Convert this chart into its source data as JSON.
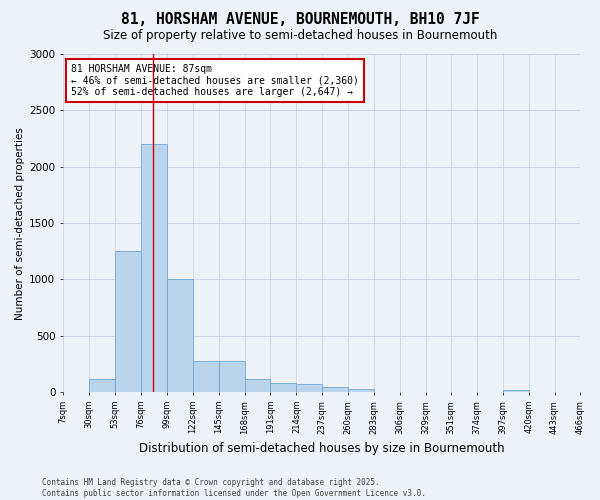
{
  "title": "81, HORSHAM AVENUE, BOURNEMOUTH, BH10 7JF",
  "subtitle": "Size of property relative to semi-detached houses in Bournemouth",
  "xlabel": "Distribution of semi-detached houses by size in Bournemouth",
  "ylabel": "Number of semi-detached properties",
  "footer_line1": "Contains HM Land Registry data © Crown copyright and database right 2025.",
  "footer_line2": "Contains public sector information licensed under the Open Government Licence v3.0.",
  "annotation_title": "81 HORSHAM AVENUE: 87sqm",
  "annotation_line2": "← 46% of semi-detached houses are smaller (2,360)",
  "annotation_line3": "52% of semi-detached houses are larger (2,647) →",
  "property_size": 87,
  "bin_edges": [
    7,
    30,
    53,
    76,
    99,
    122,
    145,
    168,
    191,
    214,
    237,
    260,
    283,
    306,
    329,
    351,
    374,
    397,
    420,
    443,
    466
  ],
  "bar_values": [
    0,
    120,
    1250,
    2200,
    1000,
    280,
    280,
    120,
    80,
    70,
    50,
    30,
    0,
    0,
    0,
    0,
    0,
    15,
    0,
    0
  ],
  "bar_color": "#bad4ec",
  "bar_edge_color": "#6fa8d4",
  "vline_color": "#cc0000",
  "grid_color": "#c8d4e4",
  "background_color": "#edf2f8",
  "annotation_box_color": "#ffffff",
  "annotation_box_edge": "#cc0000",
  "ylim": [
    0,
    3000
  ],
  "yticks": [
    0,
    500,
    1000,
    1500,
    2000,
    2500,
    3000
  ]
}
